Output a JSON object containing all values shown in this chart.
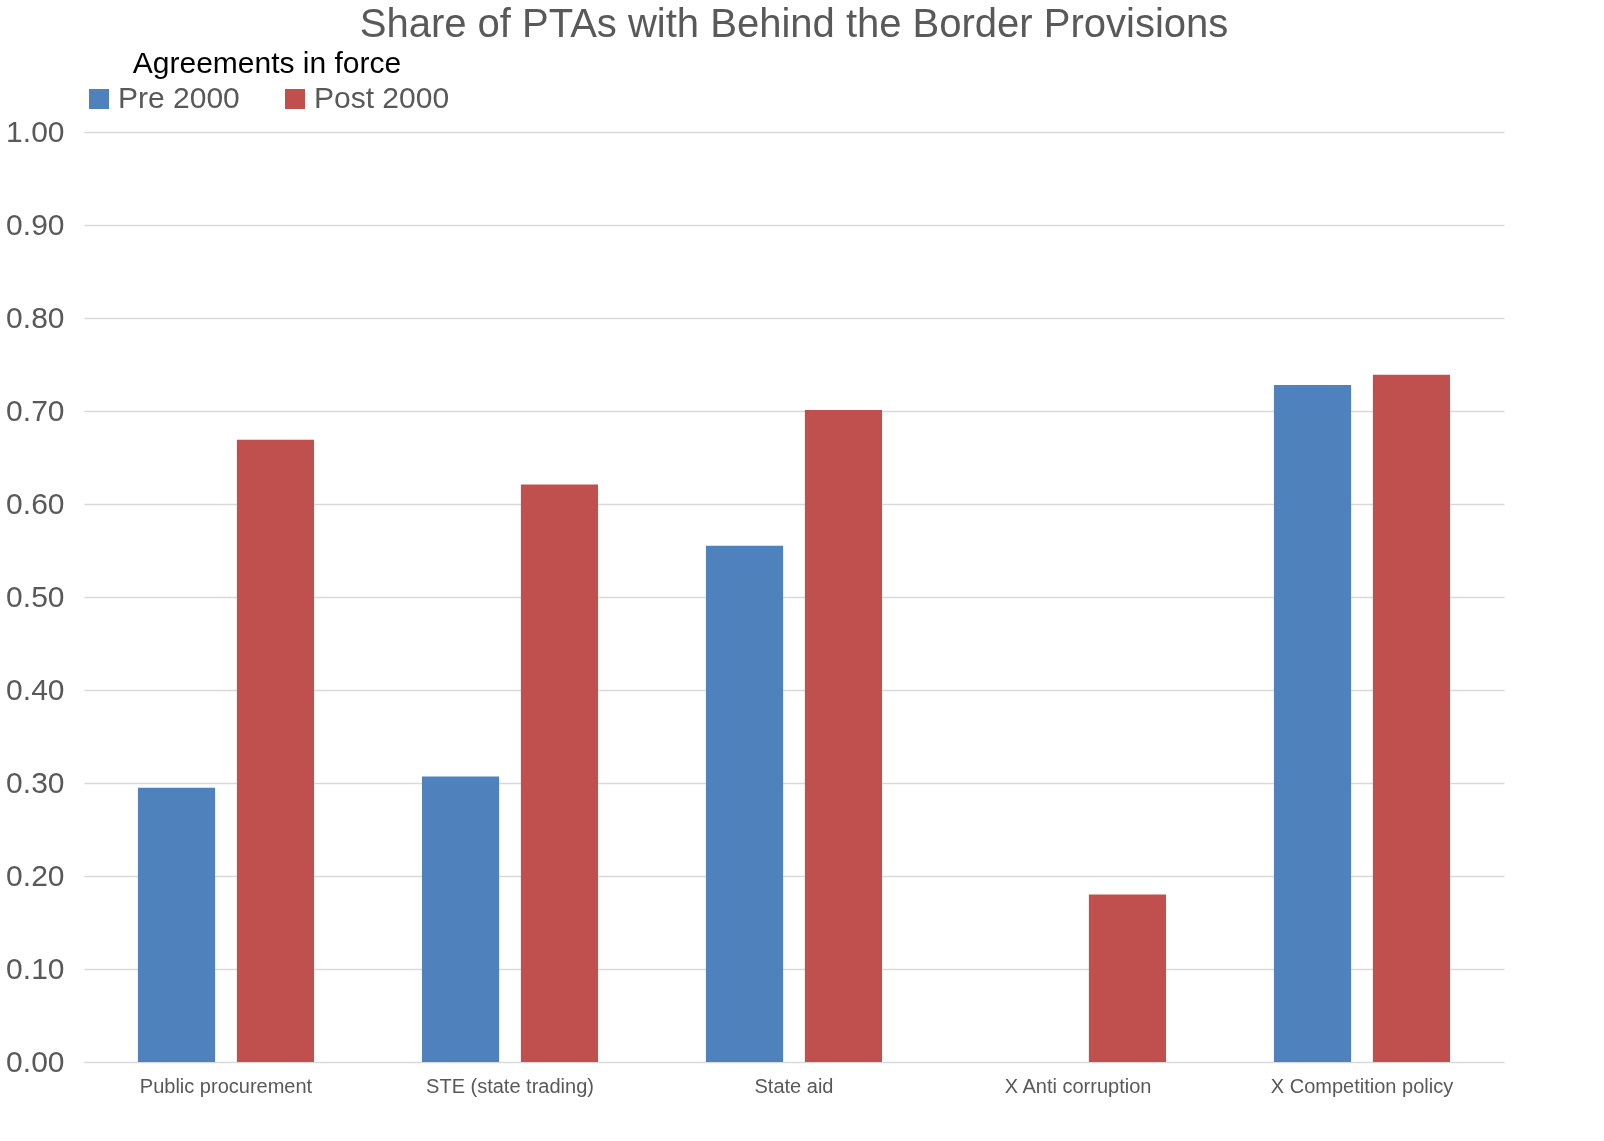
{
  "chart_data": {
    "type": "bar",
    "title": "Share of PTAs with Behind the Border Provisions",
    "categories": [
      "Public procurement",
      "STE (state trading)",
      "State aid",
      "X Anti corruption",
      "X Competition policy"
    ],
    "series": [
      {
        "name": "Pre 2000",
        "color": "#4f81bd",
        "values": [
          0.295,
          0.307,
          0.555,
          0,
          0.728
        ]
      },
      {
        "name": "Post 2000",
        "color": "#c0504d",
        "values": [
          0.669,
          0.621,
          0.701,
          0.18,
          0.739
        ]
      }
    ],
    "legend_title": "Agreements in force",
    "legend": "top",
    "ylim": [
      0,
      1
    ],
    "yticks": [
      {
        "value": 0,
        "label": "0.00"
      },
      {
        "value": 0.1,
        "label": "0.10"
      },
      {
        "value": 0.2,
        "label": "0.20"
      },
      {
        "value": 0.3,
        "label": "0.30"
      },
      {
        "value": 0.4,
        "label": "0.40"
      },
      {
        "value": 0.5,
        "label": "0.50"
      },
      {
        "value": 0.6,
        "label": "0.60"
      },
      {
        "value": 0.7,
        "label": "0.70"
      },
      {
        "value": 0.8,
        "label": "0.80"
      },
      {
        "value": 0.9,
        "label": "0.90"
      },
      {
        "value": 1,
        "label": "1.00"
      }
    ],
    "grid": "y"
  }
}
